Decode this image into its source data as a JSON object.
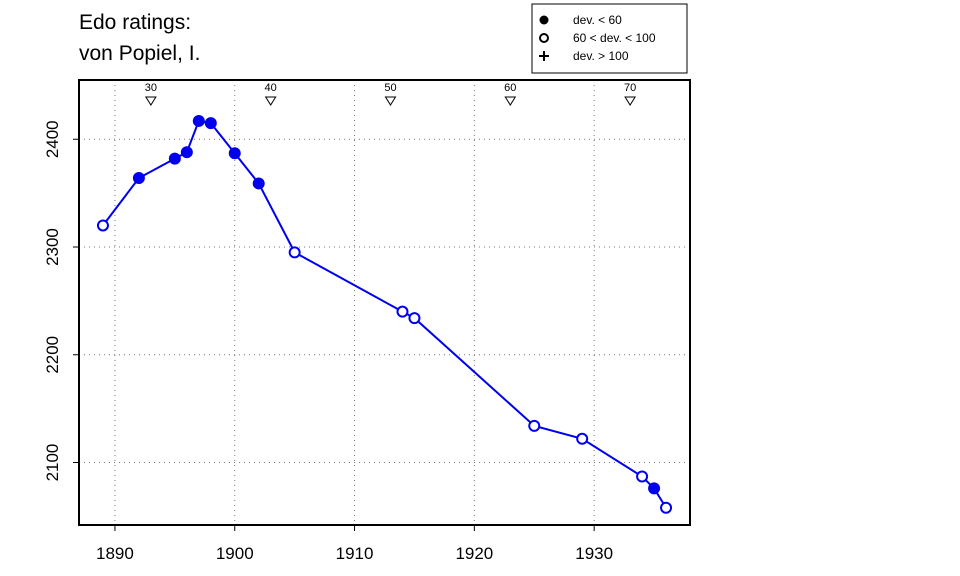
{
  "chart_data": {
    "type": "line",
    "title_lines": [
      "Edo ratings:",
      "von Popiel, I."
    ],
    "xlabel": "",
    "ylabel": "",
    "xlim": [
      1887.0,
      1938.0
    ],
    "ylim": [
      2042,
      2455
    ],
    "x_ticks": [
      "1890",
      "1900",
      "1910",
      "1920",
      "1930"
    ],
    "y_ticks": [
      "2100",
      "2200",
      "2300",
      "2400"
    ],
    "grid": true,
    "line_color": "#0000ee",
    "legend": {
      "placement": "top-right",
      "entries": [
        {
          "marker": "filled-circle",
          "label": "dev. < 60"
        },
        {
          "marker": "open-circle",
          "label": "60 < dev. < 100"
        },
        {
          "marker": "plus",
          "label": "dev. > 100"
        }
      ]
    },
    "age_markers": [
      {
        "label": "30",
        "x": 1893
      },
      {
        "label": "40",
        "x": 1903
      },
      {
        "label": "50",
        "x": 1913
      },
      {
        "label": "60",
        "x": 1923
      },
      {
        "label": "70",
        "x": 1933
      }
    ],
    "series": [
      {
        "points": [
          {
            "x": 1889,
            "y": 2320,
            "marker": "open"
          },
          {
            "x": 1892,
            "y": 2364,
            "marker": "filled"
          },
          {
            "x": 1895,
            "y": 2382,
            "marker": "filled"
          },
          {
            "x": 1896,
            "y": 2388,
            "marker": "filled"
          },
          {
            "x": 1897,
            "y": 2417,
            "marker": "filled"
          },
          {
            "x": 1898,
            "y": 2415,
            "marker": "filled"
          },
          {
            "x": 1900,
            "y": 2387,
            "marker": "filled"
          },
          {
            "x": 1902,
            "y": 2359,
            "marker": "filled"
          },
          {
            "x": 1905,
            "y": 2295,
            "marker": "open"
          },
          {
            "x": 1914,
            "y": 2240,
            "marker": "open"
          },
          {
            "x": 1915,
            "y": 2234,
            "marker": "open"
          },
          {
            "x": 1925,
            "y": 2134,
            "marker": "open"
          },
          {
            "x": 1929,
            "y": 2122,
            "marker": "open"
          },
          {
            "x": 1934,
            "y": 2087,
            "marker": "open"
          },
          {
            "x": 1935,
            "y": 2076,
            "marker": "filled"
          },
          {
            "x": 1936,
            "y": 2058,
            "marker": "open"
          }
        ]
      }
    ]
  }
}
